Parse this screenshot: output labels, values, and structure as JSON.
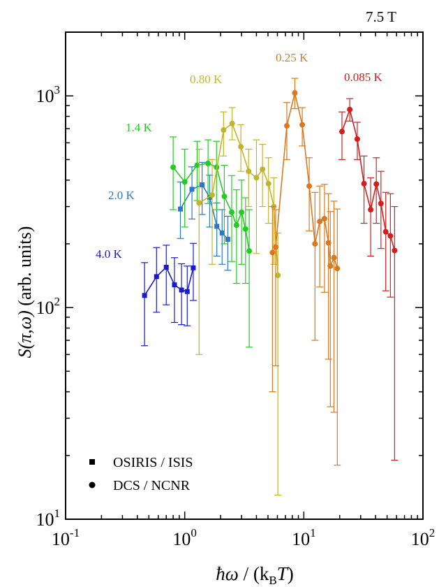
{
  "chart_data": {
    "type": "scatter",
    "title": "7.5 T",
    "xlabel": {
      "symbol": "ħω",
      "sep": " / (",
      "kb": "k",
      "kb_sub": "B",
      "T": "T",
      "close": ")"
    },
    "ylabel": {
      "S": "S",
      "args": "(π,ω)",
      "unit": " (arb. units)"
    },
    "xscale": "log",
    "yscale": "log",
    "xlim": [
      0.1,
      100
    ],
    "ylim": [
      10,
      2000
    ],
    "xtick_labels": [
      {
        "base": "10",
        "exp": "-1",
        "value": 0.1
      },
      {
        "base": "10",
        "exp": "0",
        "value": 1
      },
      {
        "base": "10",
        "exp": "1",
        "value": 10
      },
      {
        "base": "10",
        "exp": "2",
        "value": 100
      }
    ],
    "ytick_labels": [
      {
        "base": "10",
        "exp": "1",
        "value": 10
      },
      {
        "base": "10",
        "exp": "2",
        "value": 100
      },
      {
        "base": "10",
        "exp": "3",
        "value": 1000
      }
    ],
    "legend": {
      "placement": "bottom-left",
      "entries": [
        {
          "marker": "square",
          "label": "OSIRIS / ISIS"
        },
        {
          "marker": "circle",
          "label": "DCS / NCNR"
        }
      ]
    },
    "series": [
      {
        "name": "4.0 K",
        "color": "#1a1acc",
        "marker": "square",
        "x": [
          0.46,
          0.58,
          0.7,
          0.82,
          0.94,
          1.05,
          1.18
        ],
        "y": [
          114,
          140,
          155,
          128,
          121,
          119,
          154
        ],
        "ylow": [
          66,
          95,
          103,
          85,
          83,
          82,
          108
        ],
        "yhigh": [
          163,
          192,
          197,
          172,
          161,
          157,
          201
        ]
      },
      {
        "name": "2.0 K",
        "color": "#2a78c8",
        "marker": "square",
        "x": [
          0.92,
          1.15,
          1.4,
          1.62,
          1.86,
          2.06,
          2.3
        ],
        "y": [
          292,
          362,
          380,
          332,
          242,
          225,
          210
        ],
        "ylow": [
          212,
          262,
          275,
          240,
          175,
          160,
          150
        ],
        "yhigh": [
          392,
          462,
          485,
          422,
          312,
          290,
          270
        ]
      },
      {
        "name": "1.4 K",
        "color": "#22cc22",
        "marker": "circle",
        "x": [
          0.8,
          1.0,
          1.27,
          1.57,
          1.85,
          2.15,
          2.48,
          2.72,
          3.0,
          3.24,
          3.48
        ],
        "y": [
          460,
          392,
          470,
          480,
          460,
          335,
          282,
          245,
          282,
          235,
          185
        ],
        "ylow": [
          290,
          240,
          320,
          310,
          290,
          200,
          165,
          130,
          160,
          130,
          65
        ],
        "yhigh": [
          640,
          560,
          610,
          620,
          610,
          470,
          420,
          360,
          400,
          330,
          290
        ]
      },
      {
        "name": "0.80 K",
        "color": "#c2b42a",
        "marker": "circle",
        "x": [
          1.32,
          1.7,
          2.12,
          2.5,
          2.96,
          3.44,
          4.0,
          4.5,
          5.05,
          5.6,
          6.05
        ],
        "y": [
          312,
          340,
          690,
          740,
          575,
          440,
          410,
          450,
          385,
          300,
          142
        ],
        "ylow": [
          60,
          160,
          520,
          620,
          440,
          300,
          180,
          300,
          250,
          160,
          13
        ],
        "yhigh": [
          560,
          500,
          840,
          880,
          730,
          560,
          620,
          590,
          510,
          410,
          225
        ]
      },
      {
        "name": "0.25 K",
        "color": "#d9791f",
        "marker": "circle",
        "x": [
          5.45,
          5.8,
          7.2,
          8.4,
          9.7,
          11.1,
          12.4,
          13.6,
          14.9,
          16.1,
          16.7,
          17.9,
          19.1
        ],
        "y": [
          182,
          193,
          722,
          1032,
          730,
          375,
          200,
          255,
          263,
          202,
          157,
          172,
          153
        ],
        "ylow": [
          40,
          53,
          500,
          870,
          580,
          230,
          70,
          125,
          118,
          57,
          34,
          32,
          18
        ],
        "yhigh": [
          300,
          290,
          930,
          1210,
          880,
          510,
          350,
          375,
          382,
          345,
          284,
          318,
          292
        ]
      },
      {
        "name": "0.085 K",
        "color": "#d41e1e",
        "marker": "circle",
        "x": [
          20.9,
          24.3,
          28.1,
          32.0,
          36.4,
          40.6,
          44.4,
          48.7,
          53.3,
          57.8
        ],
        "y": [
          678,
          862,
          625,
          385,
          290,
          383,
          310,
          228,
          218,
          186
        ],
        "ylow": [
          500,
          760,
          500,
          250,
          175,
          250,
          190,
          120,
          112,
          19
        ],
        "yhigh": [
          840,
          970,
          750,
          520,
          410,
          510,
          440,
          350,
          345,
          300
        ]
      }
    ]
  }
}
